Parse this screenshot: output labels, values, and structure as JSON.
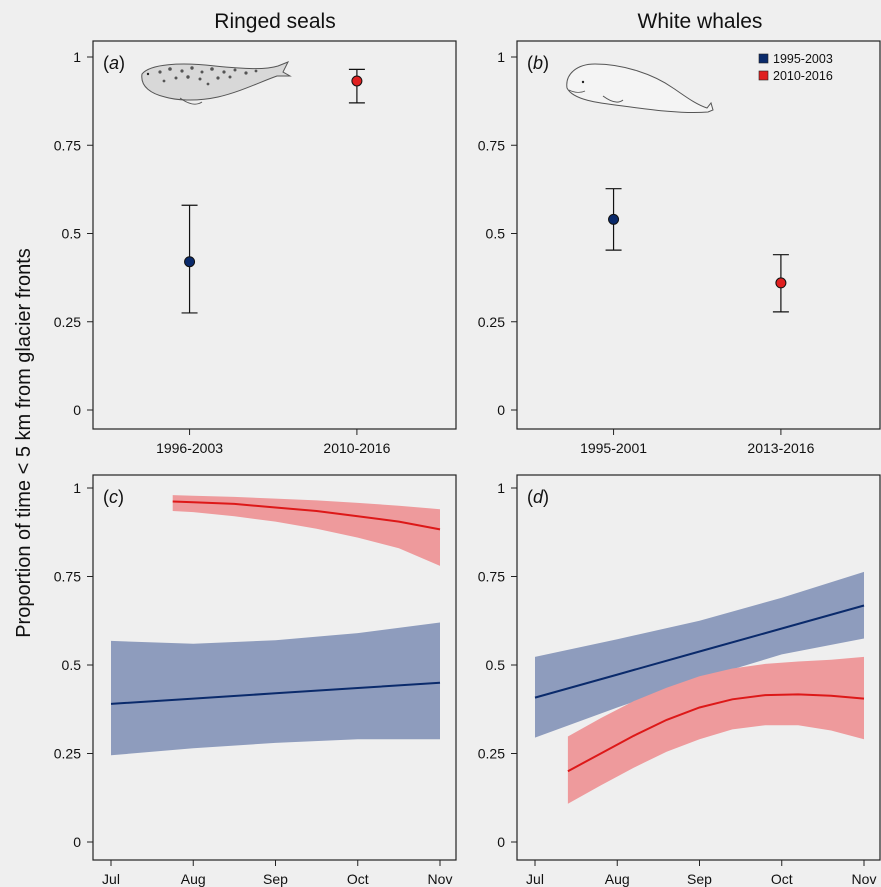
{
  "figure": {
    "ylabel": "Proportion of time < 5 km from glacier fronts"
  },
  "legend": [
    {
      "label": "1995-2003",
      "color": "#0a2a6b"
    },
    {
      "label": "2010-2016",
      "color": "#e02020"
    }
  ],
  "colors": {
    "blue_line": "#0a2a6b",
    "blue_band": "#8e9cbd",
    "red_line": "#dd1818",
    "red_band": "#ee9a9c",
    "point_blue": "#0a2a6b",
    "point_red": "#e02020"
  },
  "chart_data": [
    {
      "panel": "a",
      "type": "scatter",
      "title": "Ringed seals",
      "panel_label": "a",
      "icon": "ringed-seal-icon",
      "categories": [
        "1996-2003",
        "2010-2016"
      ],
      "points": [
        {
          "x": "1996-2003",
          "y": 0.42,
          "lower": 0.275,
          "upper": 0.58,
          "color": "#0a2a6b"
        },
        {
          "x": "2010-2016",
          "y": 0.932,
          "lower": 0.87,
          "upper": 0.965,
          "color": "#e02020"
        }
      ],
      "ylim": [
        0,
        1
      ],
      "yticks": [
        0,
        0.25,
        0.5,
        0.75,
        1
      ],
      "yticklabels": [
        "0",
        "0.25",
        "0.5",
        "0.75",
        "1"
      ]
    },
    {
      "panel": "b",
      "type": "scatter",
      "title": "White whales",
      "panel_label": "b",
      "icon": "white-whale-icon",
      "legend_position": "top-right",
      "categories": [
        "1995-2001",
        "2013-2016"
      ],
      "points": [
        {
          "x": "1995-2001",
          "y": 0.54,
          "lower": 0.453,
          "upper": 0.627,
          "color": "#0a2a6b"
        },
        {
          "x": "2013-2016",
          "y": 0.36,
          "lower": 0.278,
          "upper": 0.44,
          "color": "#e02020"
        }
      ],
      "ylim": [
        0,
        1
      ],
      "yticks": [
        0,
        0.25,
        0.5,
        0.75,
        1
      ],
      "yticklabels": [
        "0",
        "0.25",
        "0.5",
        "0.75",
        "1"
      ]
    },
    {
      "panel": "c",
      "type": "line",
      "panel_label": "c",
      "xticklabels": [
        "Jul",
        "Aug",
        "Sep",
        "Oct",
        "Nov"
      ],
      "xlim": [
        0,
        4
      ],
      "ylim": [
        0,
        1
      ],
      "yticks": [
        0,
        0.25,
        0.5,
        0.75,
        1
      ],
      "yticklabels": [
        "0",
        "0.25",
        "0.5",
        "0.75",
        "1"
      ],
      "series": [
        {
          "color": "blue",
          "x": [
            0,
            1,
            2,
            3,
            4
          ],
          "y": [
            0.39,
            0.405,
            0.42,
            0.435,
            0.45
          ],
          "lower": [
            0.245,
            0.265,
            0.28,
            0.29,
            0.29
          ],
          "upper": [
            0.568,
            0.56,
            0.57,
            0.59,
            0.62
          ]
        },
        {
          "color": "red",
          "x": [
            0.75,
            1,
            1.5,
            2,
            2.5,
            3,
            3.5,
            4
          ],
          "y": [
            0.962,
            0.96,
            0.955,
            0.945,
            0.935,
            0.92,
            0.905,
            0.883
          ],
          "lower": [
            0.935,
            0.932,
            0.92,
            0.905,
            0.885,
            0.86,
            0.83,
            0.78
          ],
          "upper": [
            0.98,
            0.978,
            0.975,
            0.97,
            0.965,
            0.958,
            0.95,
            0.94
          ]
        }
      ]
    },
    {
      "panel": "d",
      "type": "line",
      "panel_label": "d",
      "xticklabels": [
        "Jul",
        "Aug",
        "Sep",
        "Oct",
        "Nov"
      ],
      "xlim": [
        0,
        4
      ],
      "ylim": [
        0,
        1
      ],
      "yticks": [
        0,
        0.25,
        0.5,
        0.75,
        1
      ],
      "yticklabels": [
        "0",
        "0.25",
        "0.5",
        "0.75",
        "1"
      ],
      "series": [
        {
          "color": "blue",
          "x": [
            0,
            1,
            2,
            3,
            4
          ],
          "y": [
            0.408,
            0.473,
            0.538,
            0.603,
            0.668
          ],
          "lower": [
            0.295,
            0.38,
            0.46,
            0.53,
            0.575
          ],
          "upper": [
            0.523,
            0.573,
            0.625,
            0.69,
            0.763
          ]
        },
        {
          "color": "red",
          "x": [
            0.4,
            0.8,
            1.2,
            1.6,
            2,
            2.4,
            2.8,
            3.2,
            3.6,
            4
          ],
          "y": [
            0.2,
            0.25,
            0.3,
            0.345,
            0.38,
            0.403,
            0.415,
            0.417,
            0.413,
            0.405
          ],
          "lower": [
            0.108,
            0.16,
            0.21,
            0.255,
            0.29,
            0.318,
            0.33,
            0.33,
            0.315,
            0.29
          ],
          "upper": [
            0.298,
            0.35,
            0.398,
            0.436,
            0.468,
            0.49,
            0.503,
            0.51,
            0.515,
            0.523
          ]
        }
      ]
    }
  ]
}
